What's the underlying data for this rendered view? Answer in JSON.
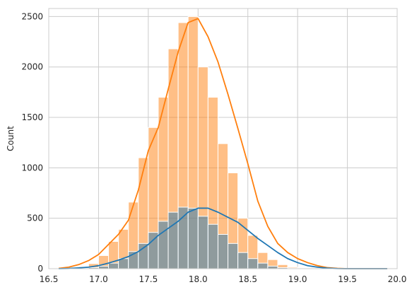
{
  "chart_data": {
    "type": "bar",
    "title": "",
    "xlabel": "",
    "ylabel": "Count",
    "xlim": [
      16.5,
      20.0
    ],
    "ylim": [
      0,
      2580
    ],
    "xticks": [
      16.5,
      17.0,
      17.5,
      18.0,
      18.5,
      19.0,
      19.5,
      20.0
    ],
    "xtick_labels": [
      "16.5",
      "17.0",
      "17.5",
      "18.0",
      "18.5",
      "19.0",
      "19.5",
      "20.0"
    ],
    "yticks": [
      0,
      500,
      1000,
      1500,
      2000,
      2500
    ],
    "ytick_labels": [
      "0",
      "500",
      "1000",
      "1500",
      "2000",
      "2500"
    ],
    "grid": true,
    "bin_width": 0.1,
    "series": [
      {
        "color": "#ff7f0e",
        "bin_starts": [
          16.7,
          16.8,
          16.9,
          17.0,
          17.1,
          17.2,
          17.3,
          17.4,
          17.5,
          17.6,
          17.7,
          17.8,
          17.9,
          18.0,
          18.1,
          18.2,
          18.3,
          18.4,
          18.5,
          18.6,
          18.7,
          18.8,
          18.9,
          19.0,
          19.1,
          19.2,
          19.3,
          19.4,
          19.5,
          19.6,
          19.7,
          19.8
        ],
        "counts": [
          10,
          20,
          50,
          130,
          270,
          390,
          660,
          1100,
          1400,
          1700,
          2180,
          2440,
          2500,
          2000,
          1700,
          1240,
          950,
          500,
          330,
          160,
          90,
          40,
          15,
          5,
          0,
          0,
          0,
          0,
          0,
          0,
          0,
          0
        ],
        "kde_x": [
          16.6,
          16.7,
          16.8,
          16.9,
          17.0,
          17.1,
          17.2,
          17.3,
          17.4,
          17.5,
          17.6,
          17.7,
          17.8,
          17.9,
          18.0,
          18.1,
          18.2,
          18.3,
          18.4,
          18.5,
          18.6,
          18.7,
          18.8,
          18.9,
          19.0,
          19.1,
          19.2,
          19.3,
          19.4,
          19.5,
          19.6,
          19.7,
          19.9
        ],
        "kde_y": [
          3,
          15,
          40,
          80,
          140,
          240,
          340,
          480,
          780,
          1170,
          1400,
          1780,
          2150,
          2440,
          2480,
          2300,
          2050,
          1730,
          1390,
          1040,
          670,
          420,
          250,
          160,
          100,
          60,
          30,
          10,
          3,
          0,
          0,
          0,
          0
        ]
      },
      {
        "color": "#1f77b4",
        "bin_starts": [
          16.7,
          16.8,
          16.9,
          17.0,
          17.1,
          17.2,
          17.3,
          17.4,
          17.5,
          17.6,
          17.7,
          17.8,
          17.9,
          18.0,
          18.1,
          18.2,
          18.3,
          18.4,
          18.5,
          18.6,
          18.7,
          18.8,
          18.9,
          19.0,
          19.1,
          19.2,
          19.3,
          19.4,
          19.5,
          19.6,
          19.7,
          19.8
        ],
        "counts": [
          2,
          5,
          10,
          25,
          55,
          100,
          170,
          250,
          360,
          470,
          560,
          610,
          600,
          520,
          440,
          340,
          250,
          160,
          100,
          55,
          25,
          10,
          5,
          2,
          0,
          0,
          0,
          0,
          0,
          0,
          0,
          0
        ],
        "kde_x": [
          16.6,
          16.7,
          16.8,
          16.9,
          17.0,
          17.1,
          17.2,
          17.3,
          17.4,
          17.5,
          17.6,
          17.7,
          17.8,
          17.9,
          18.0,
          18.1,
          18.2,
          18.3,
          18.4,
          18.5,
          18.6,
          18.7,
          18.8,
          18.9,
          19.0,
          19.1,
          19.2,
          19.3,
          19.4,
          19.5,
          19.6,
          19.7,
          19.9
        ],
        "kde_y": [
          0,
          2,
          8,
          15,
          30,
          55,
          85,
          120,
          170,
          240,
          330,
          400,
          470,
          560,
          600,
          600,
          560,
          510,
          460,
          380,
          300,
          230,
          160,
          100,
          60,
          30,
          15,
          5,
          1,
          0,
          0,
          0,
          0
        ]
      }
    ]
  }
}
